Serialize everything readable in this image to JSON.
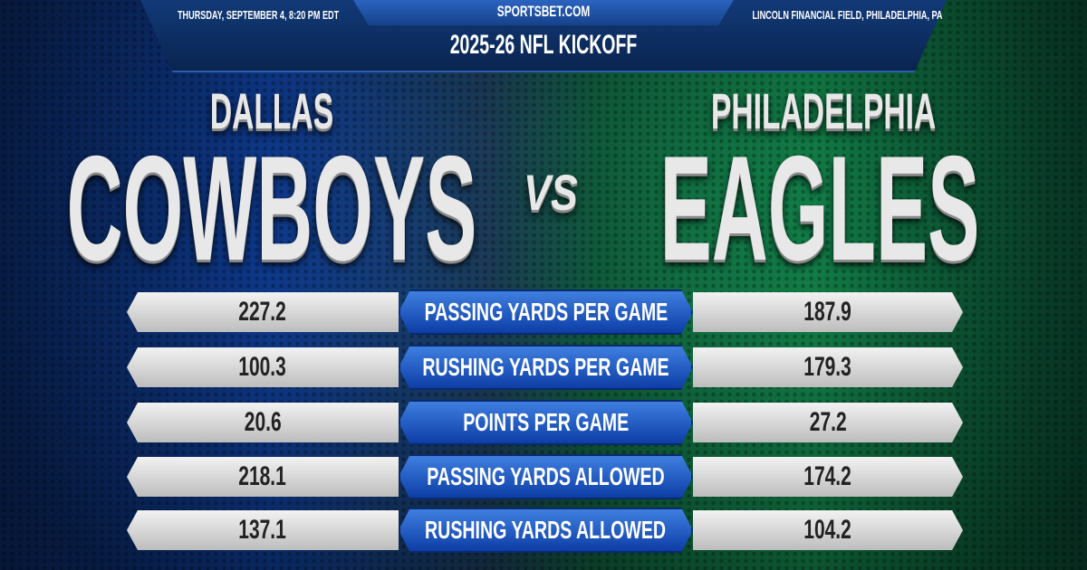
{
  "header": {
    "date": "THURSDAY, SEPTEMBER 4, 8:20 PM EDT",
    "site": "SPORTSBET.COM",
    "venue": "LINCOLN FINANCIAL FIELD, PHILADELPHIA, PA",
    "title": "2025-26 NFL KICKOFF"
  },
  "teams": {
    "away_city": "DALLAS",
    "away_name": "COWBOYS",
    "vs": "VS",
    "home_city": "PHILADELPHIA",
    "home_name": "EAGLES"
  },
  "colors": {
    "away": "#0f3f9a",
    "home": "#138a4e",
    "label_bar": "#1f5fd0"
  },
  "stats": [
    {
      "label": "PASSING YARDS PER GAME",
      "away": "227.2",
      "home": "187.9"
    },
    {
      "label": "RUSHING YARDS PER GAME",
      "away": "100.3",
      "home": "179.3"
    },
    {
      "label": "POINTS PER GAME",
      "away": "20.6",
      "home": "27.2"
    },
    {
      "label": "PASSING YARDS ALLOWED",
      "away": "218.1",
      "home": "174.2"
    },
    {
      "label": "RUSHING YARDS ALLOWED",
      "away": "137.1",
      "home": "104.2"
    }
  ]
}
